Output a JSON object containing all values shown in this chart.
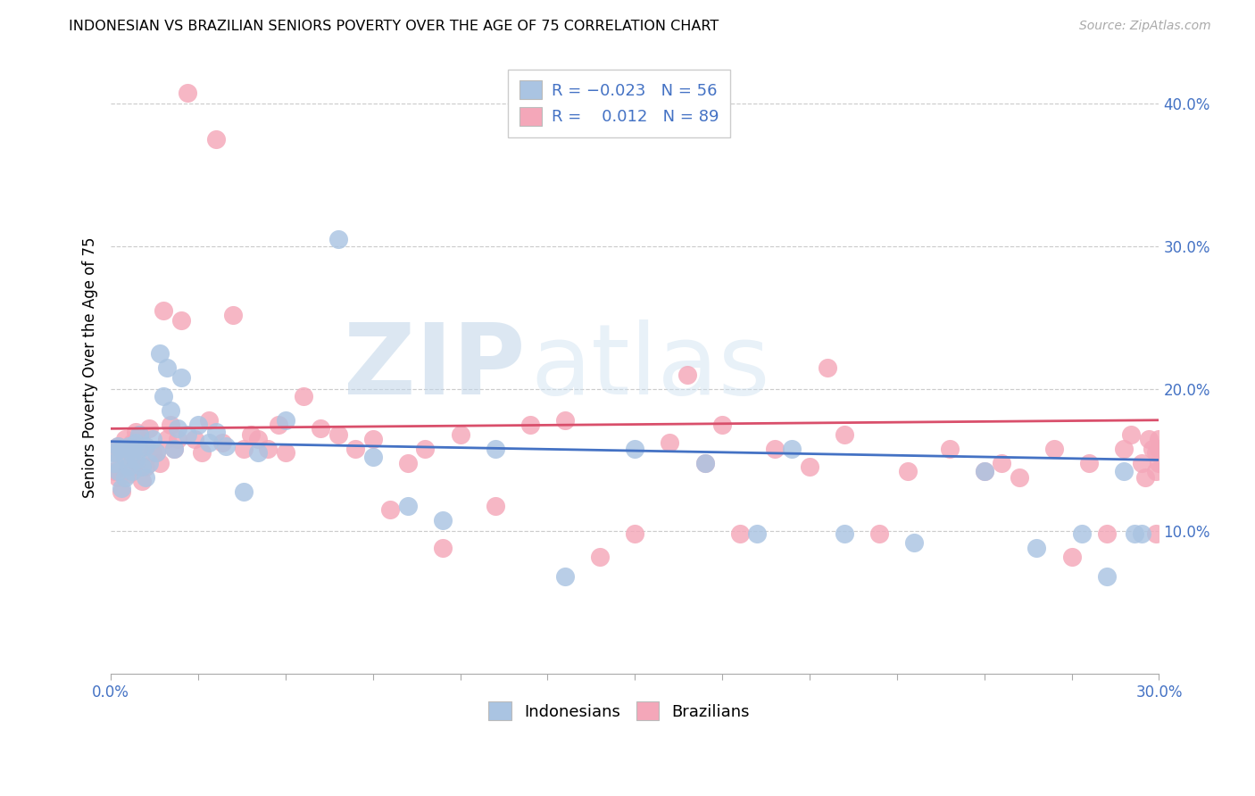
{
  "title": "INDONESIAN VS BRAZILIAN SENIORS POVERTY OVER THE AGE OF 75 CORRELATION CHART",
  "source": "Source: ZipAtlas.com",
  "ylabel": "Seniors Poverty Over the Age of 75",
  "xlim": [
    0.0,
    0.3
  ],
  "ylim": [
    0.0,
    0.43
  ],
  "indonesian_R": "-0.023",
  "indonesian_N": "56",
  "brazilian_R": "0.012",
  "brazilian_N": "89",
  "indonesian_color": "#aac4e2",
  "brazilian_color": "#f4a7b9",
  "indonesian_line_color": "#4472c4",
  "brazilian_line_color": "#d94f6b",
  "watermark_zip_color": "#c8daea",
  "watermark_atlas_color": "#ccdff0",
  "indo_x": [
    0.001,
    0.001,
    0.002,
    0.002,
    0.003,
    0.003,
    0.004,
    0.004,
    0.005,
    0.005,
    0.006,
    0.006,
    0.007,
    0.007,
    0.008,
    0.008,
    0.009,
    0.01,
    0.01,
    0.011,
    0.012,
    0.013,
    0.014,
    0.015,
    0.016,
    0.017,
    0.018,
    0.019,
    0.02,
    0.022,
    0.025,
    0.028,
    0.03,
    0.033,
    0.038,
    0.042,
    0.05,
    0.065,
    0.075,
    0.085,
    0.095,
    0.11,
    0.13,
    0.15,
    0.17,
    0.185,
    0.195,
    0.21,
    0.23,
    0.25,
    0.265,
    0.278,
    0.285,
    0.29,
    0.293,
    0.295
  ],
  "indo_y": [
    0.155,
    0.148,
    0.16,
    0.142,
    0.158,
    0.13,
    0.152,
    0.138,
    0.16,
    0.145,
    0.155,
    0.142,
    0.162,
    0.15,
    0.158,
    0.168,
    0.145,
    0.138,
    0.16,
    0.148,
    0.165,
    0.155,
    0.225,
    0.195,
    0.215,
    0.185,
    0.158,
    0.172,
    0.208,
    0.168,
    0.175,
    0.162,
    0.17,
    0.16,
    0.128,
    0.155,
    0.178,
    0.305,
    0.152,
    0.118,
    0.108,
    0.158,
    0.068,
    0.158,
    0.148,
    0.098,
    0.158,
    0.098,
    0.092,
    0.142,
    0.088,
    0.098,
    0.068,
    0.142,
    0.098,
    0.098
  ],
  "braz_x": [
    0.001,
    0.001,
    0.002,
    0.002,
    0.003,
    0.003,
    0.004,
    0.004,
    0.005,
    0.005,
    0.006,
    0.006,
    0.007,
    0.007,
    0.008,
    0.008,
    0.009,
    0.009,
    0.01,
    0.01,
    0.011,
    0.012,
    0.013,
    0.014,
    0.015,
    0.016,
    0.017,
    0.018,
    0.019,
    0.02,
    0.022,
    0.024,
    0.026,
    0.028,
    0.03,
    0.032,
    0.035,
    0.038,
    0.04,
    0.042,
    0.045,
    0.048,
    0.05,
    0.055,
    0.06,
    0.065,
    0.07,
    0.075,
    0.08,
    0.085,
    0.09,
    0.095,
    0.1,
    0.11,
    0.12,
    0.13,
    0.14,
    0.15,
    0.16,
    0.165,
    0.17,
    0.175,
    0.18,
    0.19,
    0.2,
    0.205,
    0.21,
    0.22,
    0.228,
    0.24,
    0.25,
    0.255,
    0.26,
    0.27,
    0.275,
    0.28,
    0.285,
    0.29,
    0.292,
    0.295,
    0.296,
    0.297,
    0.298,
    0.299,
    0.299,
    0.299,
    0.3,
    0.3,
    0.3
  ],
  "braz_y": [
    0.155,
    0.142,
    0.16,
    0.138,
    0.158,
    0.128,
    0.165,
    0.148,
    0.158,
    0.14,
    0.162,
    0.145,
    0.17,
    0.148,
    0.158,
    0.168,
    0.145,
    0.135,
    0.16,
    0.145,
    0.172,
    0.155,
    0.155,
    0.148,
    0.255,
    0.165,
    0.175,
    0.158,
    0.165,
    0.248,
    0.408,
    0.165,
    0.155,
    0.178,
    0.375,
    0.162,
    0.252,
    0.158,
    0.168,
    0.165,
    0.158,
    0.175,
    0.155,
    0.195,
    0.172,
    0.168,
    0.158,
    0.165,
    0.115,
    0.148,
    0.158,
    0.088,
    0.168,
    0.118,
    0.175,
    0.178,
    0.082,
    0.098,
    0.162,
    0.21,
    0.148,
    0.175,
    0.098,
    0.158,
    0.145,
    0.215,
    0.168,
    0.098,
    0.142,
    0.158,
    0.142,
    0.148,
    0.138,
    0.158,
    0.082,
    0.148,
    0.098,
    0.158,
    0.168,
    0.148,
    0.138,
    0.165,
    0.158,
    0.142,
    0.155,
    0.098,
    0.165,
    0.158,
    0.148
  ]
}
